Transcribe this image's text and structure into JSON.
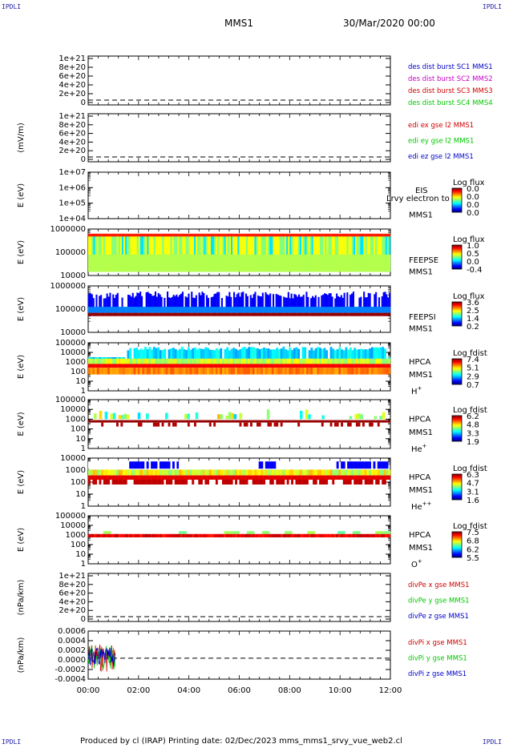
{
  "corner_tl": "IPDLI",
  "corner_tr": "IPDLI",
  "corner_bl": "IPDLI",
  "corner_br": "IPDLI",
  "header": {
    "mission": "MMS1",
    "datetime": "30/Mar/2020 00:00"
  },
  "footer": {
    "text": "Produced by cl (IRAP)   Printing date: 02/Dec/2023   mms_mms1_srvy_vue_web2.cl"
  },
  "colors": {
    "blue": "#0000c8",
    "magenta": "#c800c8",
    "red": "#d00000",
    "green": "#00c800",
    "dash": "#000000"
  },
  "x_ticks": [
    "00:00",
    "02:00",
    "04:00",
    "06:00",
    "08:00",
    "10:00",
    "12:00"
  ],
  "chart_data": [
    {
      "type": "line",
      "ylabel": "",
      "ticks": [
        "1e+21",
        "8e+20",
        "6e+20",
        "4e+20",
        "2e+20",
        "0"
      ],
      "legend": [
        {
          "text": "des dist burst SC1 MMS1",
          "color": "#0000c8"
        },
        {
          "text": "des dist burst SC2 MMS2",
          "color": "#c800c8"
        },
        {
          "text": "des dist burst SC3 MMS3",
          "color": "#d00000"
        },
        {
          "text": "des dist burst SC4 MMS4",
          "color": "#00c800"
        }
      ]
    },
    {
      "type": "line",
      "ylabel": "(mV/m)",
      "ticks": [
        "1e+21",
        "8e+20",
        "6e+20",
        "4e+20",
        "2e+20",
        "0"
      ],
      "legend": [
        {
          "text": "edi ex gse l2 MMS1",
          "color": "#d00000"
        },
        {
          "text": "edi ey gse l2 MMS1",
          "color": "#00c800"
        },
        {
          "text": "edi ez gse l2 MMS1",
          "color": "#0000c8"
        }
      ]
    },
    {
      "type": "heatmap",
      "ylabel": "E (eV)",
      "ticks": [
        "1e+07",
        "1e+06",
        "1e+05",
        "1e+04"
      ],
      "inst": [
        "EIS",
        "",
        "MMS1"
      ],
      "extra": "Lrvy electron to",
      "cb_title": "Log flux",
      "cb": [
        "0.0",
        "0.0",
        "0.0",
        "0.0"
      ]
    },
    {
      "type": "heatmap",
      "ylabel": "E (eV)",
      "ticks": [
        "1000000",
        "100000",
        "10000"
      ],
      "inst": [
        "",
        "FEEPSE",
        "MMS1"
      ],
      "cb_title": "Log flux",
      "cb": [
        "1.0",
        "0.5",
        "0.0",
        "-0.4"
      ]
    },
    {
      "type": "heatmap",
      "ylabel": "E (eV)",
      "ticks": [
        "1000000",
        "100000",
        "10000"
      ],
      "inst": [
        "",
        "FEEPSI",
        "MMS1"
      ],
      "cb_title": "Log flux",
      "cb": [
        "3.6",
        "2.5",
        "1.4",
        "0.2"
      ]
    },
    {
      "type": "heatmap",
      "ylabel": "E (eV)",
      "ticks": [
        "100000",
        "10000",
        "1000",
        "100",
        "10",
        "1"
      ],
      "inst": [
        "HPCA",
        "MMS1",
        "H+"
      ],
      "cb_title": "Log fdist",
      "cb": [
        "7.4",
        "5.1",
        "2.9",
        "0.7"
      ]
    },
    {
      "type": "heatmap",
      "ylabel": "E (eV)",
      "ticks": [
        "100000",
        "10000",
        "1000",
        "100",
        "10",
        "1"
      ],
      "inst": [
        "HPCA",
        "MMS1",
        "He+"
      ],
      "cb_title": "Log fdist",
      "cb": [
        "6.2",
        "4.8",
        "3.3",
        "1.9"
      ]
    },
    {
      "type": "heatmap",
      "ylabel": "E (eV)",
      "ticks": [
        "10000",
        "1000",
        "100",
        "10",
        "1"
      ],
      "inst": [
        "HPCA",
        "MMS1",
        "He++"
      ],
      "cb_title": "Log fdist",
      "cb": [
        "6.3",
        "4.7",
        "3.1",
        "1.6"
      ]
    },
    {
      "type": "heatmap",
      "ylabel": "E (eV)",
      "ticks": [
        "100000",
        "10000",
        "1000",
        "100",
        "10",
        "1"
      ],
      "inst": [
        "HPCA",
        "MMS1",
        "O+"
      ],
      "cb_title": "Log fdist",
      "cb": [
        "7.5",
        "6.8",
        "6.2",
        "5.5"
      ]
    },
    {
      "type": "line",
      "ylabel": "(nPa/km)",
      "ticks": [
        "1e+21",
        "8e+20",
        "6e+20",
        "4e+20",
        "2e+20",
        "0"
      ],
      "legend": [
        {
          "text": "divPe x gse MMS1",
          "color": "#d00000"
        },
        {
          "text": "divPe y gse MMS1",
          "color": "#00c800"
        },
        {
          "text": "divPe z gse MMS1",
          "color": "#0000c8"
        }
      ]
    },
    {
      "type": "line",
      "ylabel": "(nPa/km)",
      "ticks": [
        "0.0006",
        "0.0004",
        "0.0002",
        "0.0000",
        "-0.0002",
        "-0.0004"
      ],
      "legend": [
        {
          "text": "divPi x gse MMS1",
          "color": "#d00000"
        },
        {
          "text": "divPi y gse MMS1",
          "color": "#00c800"
        },
        {
          "text": "divPi z gse MMS1",
          "color": "#0000c8"
        }
      ]
    }
  ]
}
